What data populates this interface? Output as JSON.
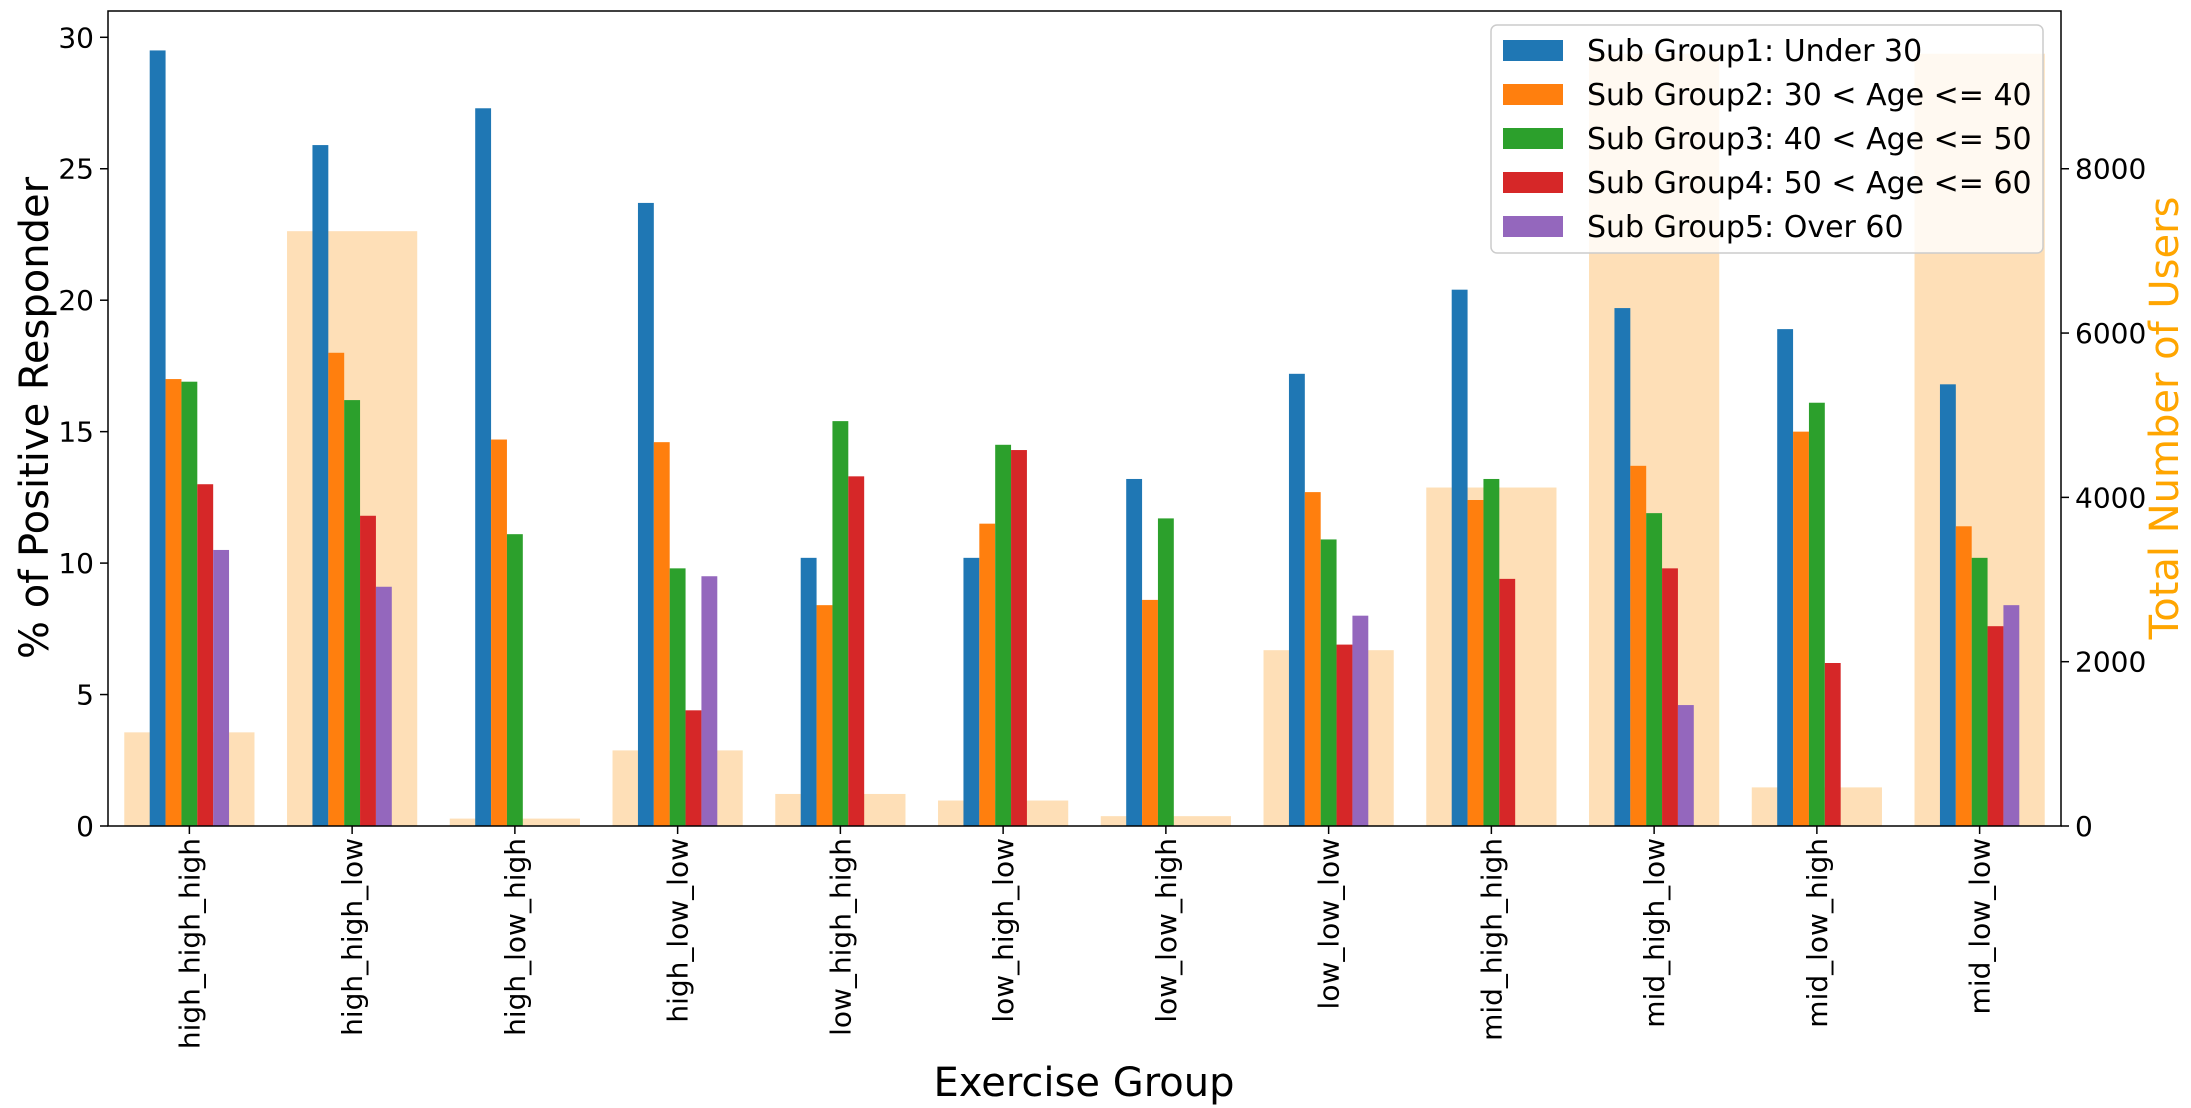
{
  "chart_data": {
    "type": "bar",
    "xlabel": "Exercise Group",
    "ylabel": "% of Positive Responder",
    "y2label": "Total Number of Users",
    "ylim": [
      0,
      31
    ],
    "y2lim": [
      0,
      9920
    ],
    "yticks": [
      0,
      5,
      10,
      15,
      20,
      25,
      30
    ],
    "y2ticks": [
      0,
      2000,
      4000,
      6000,
      8000
    ],
    "categories": [
      "high_high_high",
      "high_high_low",
      "high_low_high",
      "high_low_low",
      "low_high_high",
      "low_high_low",
      "low_low_high",
      "low_low_low",
      "mid_high_high",
      "mid_high_low",
      "mid_low_high",
      "mid_low_low"
    ],
    "series": [
      {
        "name": "Sub Group1: Under 30",
        "color": "#1f77b4",
        "values": [
          29.5,
          25.9,
          27.3,
          23.7,
          10.2,
          10.2,
          13.2,
          17.2,
          20.4,
          19.7,
          18.9,
          16.8
        ]
      },
      {
        "name": "Sub Group2: 30 < Age <= 40",
        "color": "#ff7f0e",
        "values": [
          17.0,
          18.0,
          14.7,
          14.6,
          8.4,
          11.5,
          8.6,
          12.7,
          12.4,
          13.7,
          15.0,
          11.4
        ]
      },
      {
        "name": "Sub Group3: 40 < Age <= 50",
        "color": "#2ca02c",
        "values": [
          16.9,
          16.2,
          11.1,
          9.8,
          15.4,
          14.5,
          11.7,
          10.9,
          13.2,
          11.9,
          16.1,
          10.2
        ]
      },
      {
        "name": "Sub Group4: 50 < Age <= 60",
        "color": "#d62728",
        "values": [
          13.0,
          11.8,
          0,
          4.4,
          13.3,
          14.3,
          0,
          6.9,
          9.4,
          9.8,
          6.2,
          7.6
        ]
      },
      {
        "name": "Sub Group5: Over 60",
        "color": "#9467bd",
        "values": [
          10.5,
          9.1,
          0,
          9.5,
          0,
          0,
          0,
          8.0,
          0,
          4.6,
          0,
          8.4
        ]
      }
    ],
    "secondary_series": {
      "name": "Total Number of Users",
      "color": "#fdbf6f",
      "values": [
        1140,
        7240,
        90,
        920,
        390,
        310,
        120,
        2140,
        4120,
        9400,
        470,
        9400
      ]
    }
  }
}
